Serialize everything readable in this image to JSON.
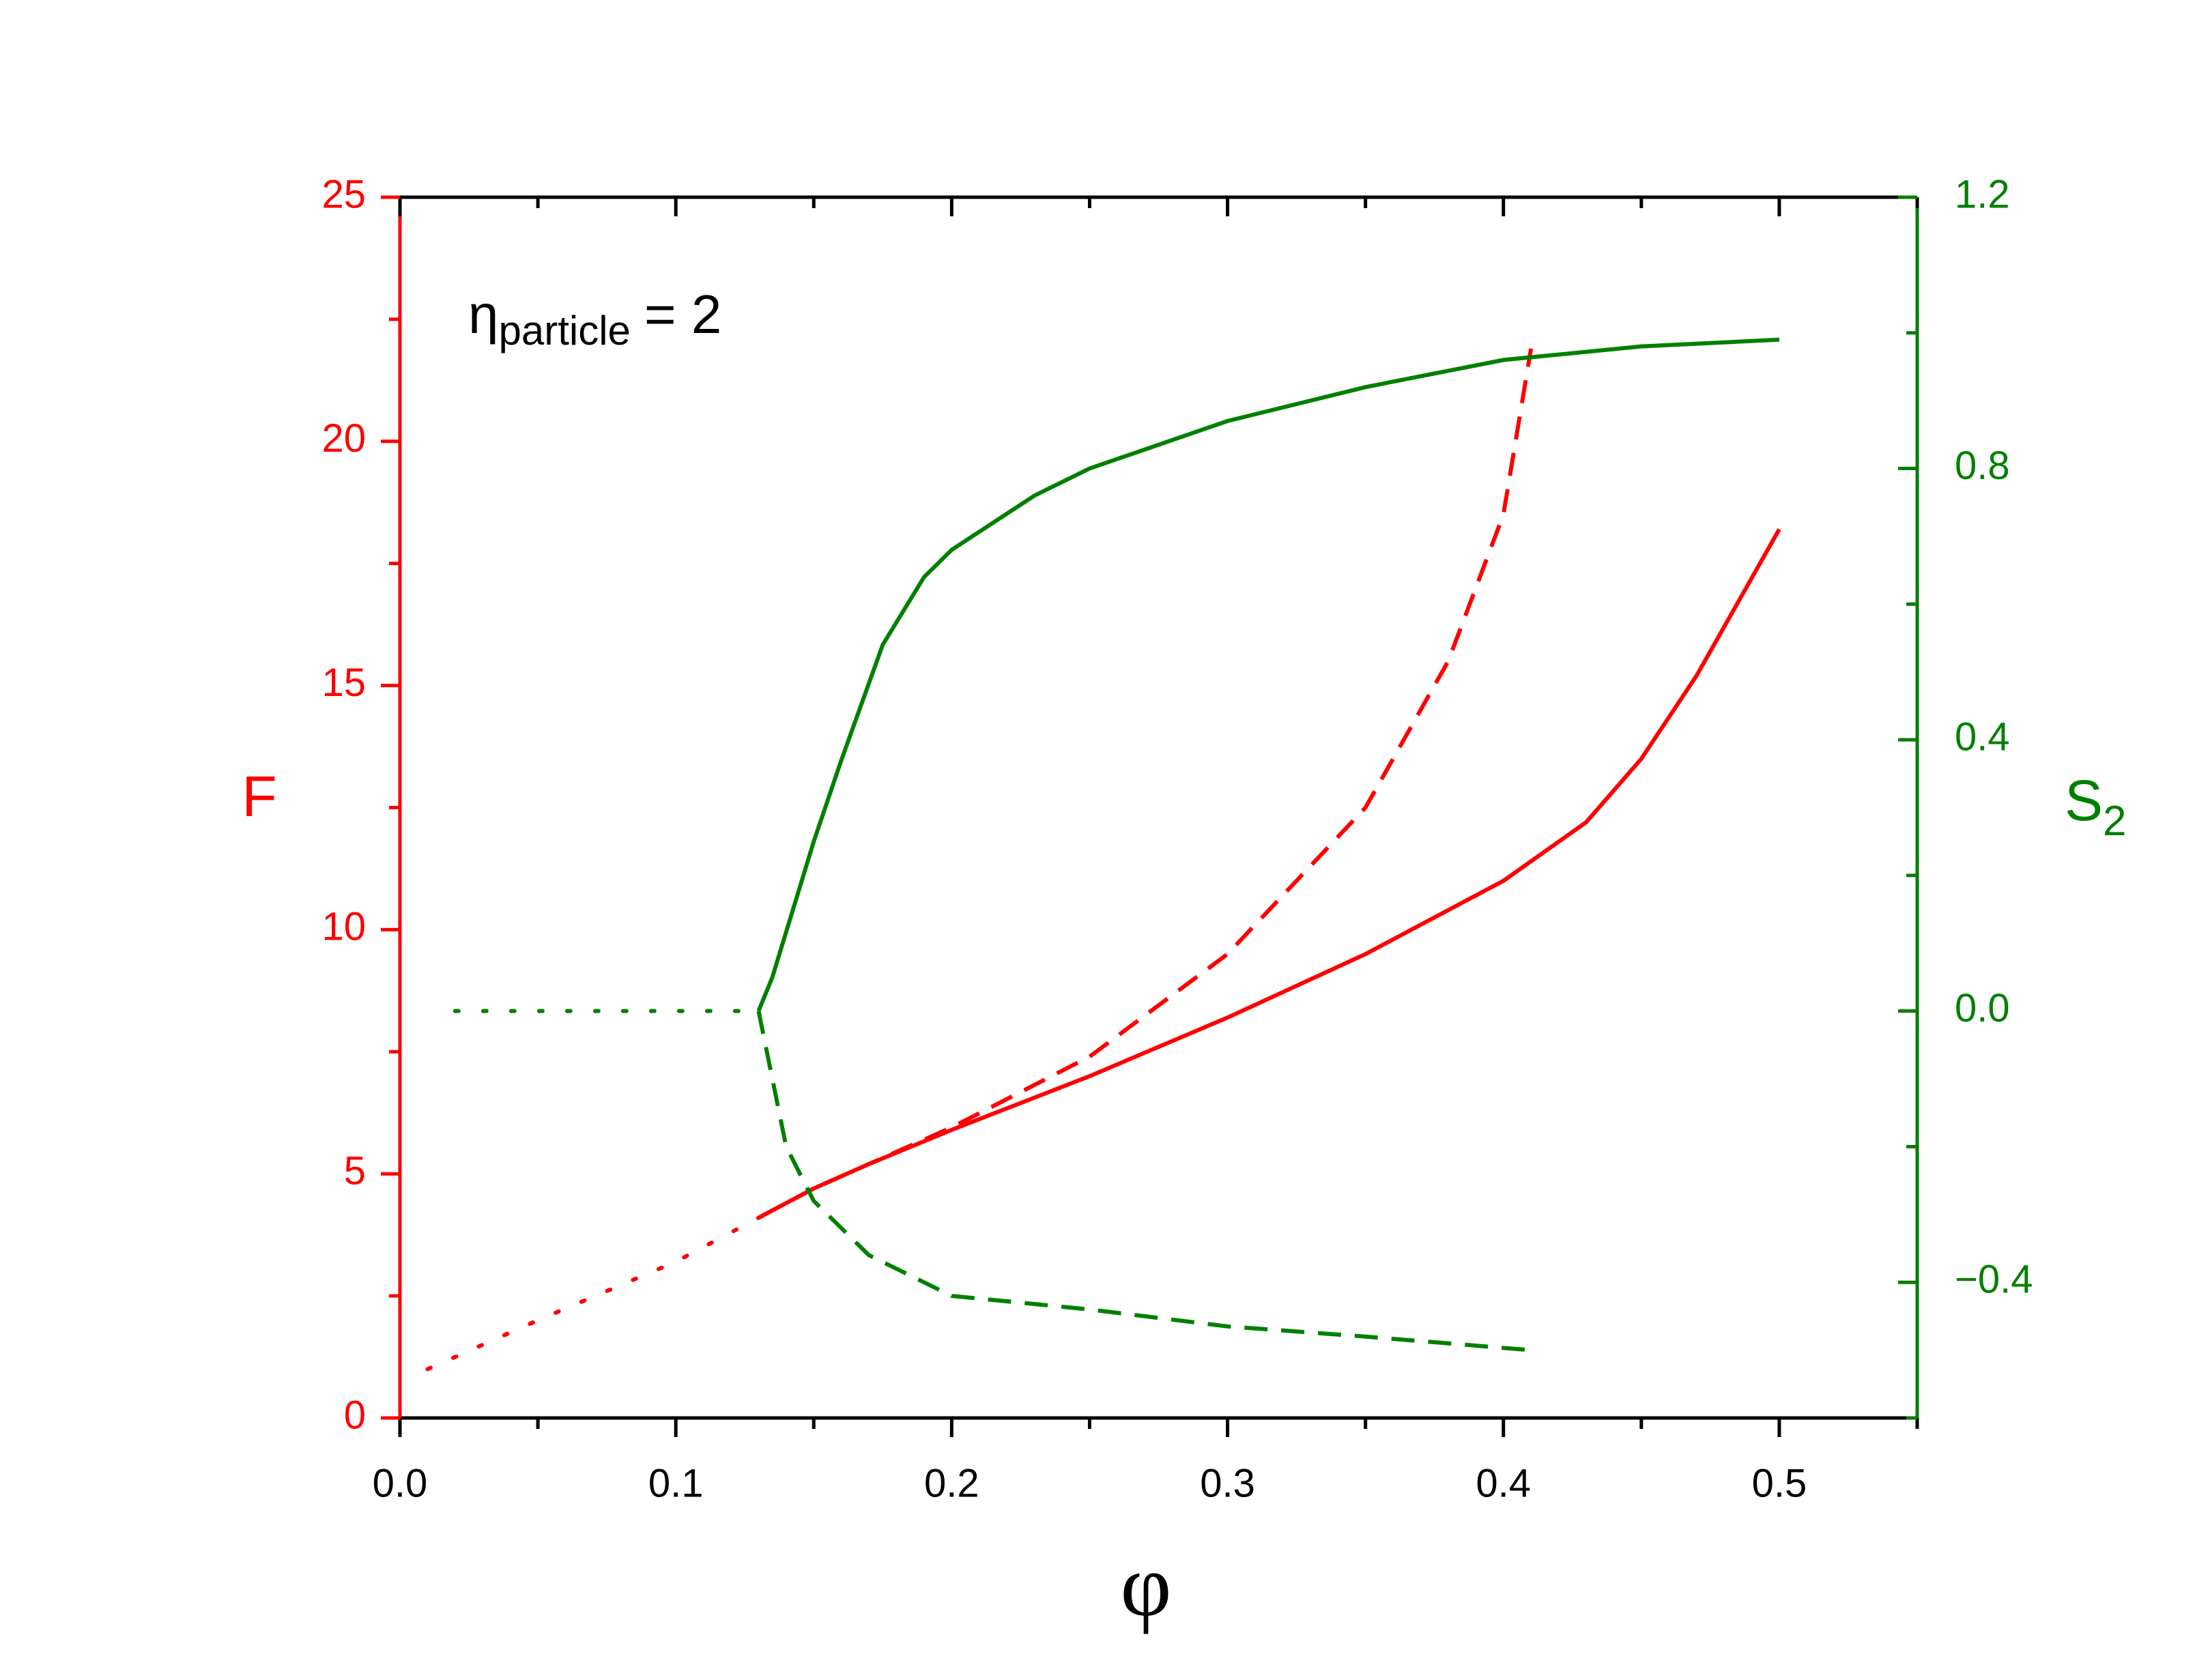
{
  "chart_data": {
    "type": "line",
    "xlabel": "φ",
    "ylabel": "F",
    "y2label": {
      "text": "S",
      "subscript": "2"
    },
    "annotation": {
      "symbol": "η",
      "subscript": "particle",
      "text": "= 2"
    },
    "xlim": [
      0,
      0.55
    ],
    "xticks": [
      {
        "value": 0,
        "label": "0.0"
      },
      0.1,
      0.2,
      0.3,
      0.4,
      0.5
    ],
    "xminorticks": [
      0.05,
      0.15,
      0.25,
      0.35,
      0.45,
      0.55
    ],
    "ylim": [
      0,
      25
    ],
    "yticks": [
      0,
      5,
      10,
      15,
      20,
      25
    ],
    "yminorticks": [
      2.5,
      7.5,
      12.5,
      17.5,
      22.5
    ],
    "y2lim": [
      -0.6,
      1.2
    ],
    "y2ticks": [
      {
        "value": -0.4,
        "label": "−0.4"
      },
      {
        "value": 0,
        "label": "0.0"
      },
      0.4,
      0.8,
      1.2
    ],
    "y2minorticks": [
      -0.6,
      -0.2,
      0.2,
      0.6,
      1.0
    ],
    "ycolor": "#ff0000",
    "y2color": "#008000",
    "series": [
      {
        "color": "#ff0000",
        "dash": "dotted",
        "x": [
          0.01,
          0.05,
          0.1,
          0.13
        ],
        "values": [
          1.0,
          2.0,
          3.2,
          4.1
        ]
      },
      {
        "color": "#ff0000",
        "dash": "solid",
        "x": [
          0.13,
          0.15,
          0.17,
          0.2,
          0.25,
          0.3,
          0.35,
          0.4,
          0.43,
          0.45,
          0.47,
          0.5
        ],
        "values": [
          4.1,
          4.7,
          5.2,
          5.9,
          7.0,
          8.2,
          9.5,
          11.0,
          12.2,
          13.5,
          15.2,
          18.2
        ]
      },
      {
        "color": "#ff0000",
        "dash": "dashed",
        "x": [
          0.13,
          0.15,
          0.2,
          0.25,
          0.3,
          0.35,
          0.38,
          0.4,
          0.41
        ],
        "values": [
          4.1,
          4.7,
          5.95,
          7.4,
          9.5,
          12.5,
          15.5,
          18.5,
          21.9
        ]
      },
      {
        "color": "#008000",
        "dash": "dotted",
        "axis": "y2",
        "x": [
          0.02,
          0.13
        ],
        "values": [
          0,
          0
        ]
      },
      {
        "color": "#008000",
        "dash": "solid",
        "axis": "y2",
        "x": [
          0.13,
          0.135,
          0.15,
          0.16,
          0.175,
          0.19,
          0.2,
          0.23,
          0.25,
          0.3,
          0.35,
          0.4,
          0.45,
          0.5
        ],
        "values": [
          0,
          0.05,
          0.25,
          0.37,
          0.54,
          0.64,
          0.68,
          0.76,
          0.8,
          0.87,
          0.92,
          0.96,
          0.98,
          0.99
        ]
      },
      {
        "color": "#008000",
        "dash": "dashed",
        "axis": "y2",
        "x": [
          0.13,
          0.135,
          0.14,
          0.15,
          0.17,
          0.2,
          0.25,
          0.3,
          0.35,
          0.41
        ],
        "values": [
          0,
          -0.1,
          -0.2,
          -0.28,
          -0.36,
          -0.42,
          -0.44,
          -0.465,
          -0.48,
          -0.5
        ]
      }
    ]
  }
}
